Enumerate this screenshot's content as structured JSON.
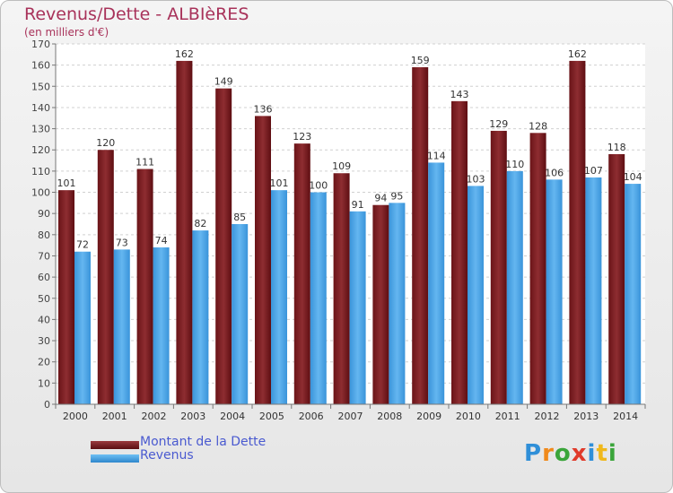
{
  "header": {
    "title": "Revenus/Dette - ALBIèRES",
    "subtitle": "(en milliers d'€)"
  },
  "chart_data": {
    "type": "bar",
    "categories": [
      "2000",
      "2001",
      "2002",
      "2003",
      "2004",
      "2005",
      "2006",
      "2007",
      "2008",
      "2009",
      "2010",
      "2011",
      "2012",
      "2013",
      "2014"
    ],
    "series": [
      {
        "name": "Montant de la Dette",
        "color": "#7a1e22",
        "values": [
          101,
          120,
          111,
          162,
          149,
          136,
          123,
          109,
          94,
          159,
          143,
          129,
          128,
          162,
          118
        ]
      },
      {
        "name": "Revenus",
        "color": "#4aa6e8",
        "values": [
          72,
          73,
          74,
          82,
          85,
          101,
          100,
          91,
          95,
          114,
          103,
          110,
          106,
          107,
          104
        ]
      }
    ],
    "ylim": [
      0,
      170
    ],
    "yticks": [
      0,
      10,
      20,
      30,
      40,
      50,
      60,
      70,
      80,
      90,
      100,
      110,
      120,
      130,
      140,
      150,
      160,
      170
    ],
    "grid": true,
    "legend": "bottom-left"
  },
  "legend": {
    "items": [
      {
        "label": "Montant de la Dette",
        "color": "#7a1e22"
      },
      {
        "label": "Revenus",
        "color": "#4aa6e8"
      }
    ]
  },
  "logo": {
    "text": "Proxiti",
    "letters": [
      {
        "ch": "P",
        "color": "#2f8fd8"
      },
      {
        "ch": "r",
        "color": "#f08a1c"
      },
      {
        "ch": "o",
        "color": "#3aa53a"
      },
      {
        "ch": "x",
        "color": "#e03a2a"
      },
      {
        "ch": "i",
        "color": "#2f8fd8"
      },
      {
        "ch": "t",
        "color": "#f0b81c"
      },
      {
        "ch": "i",
        "color": "#3aa53a"
      }
    ]
  }
}
